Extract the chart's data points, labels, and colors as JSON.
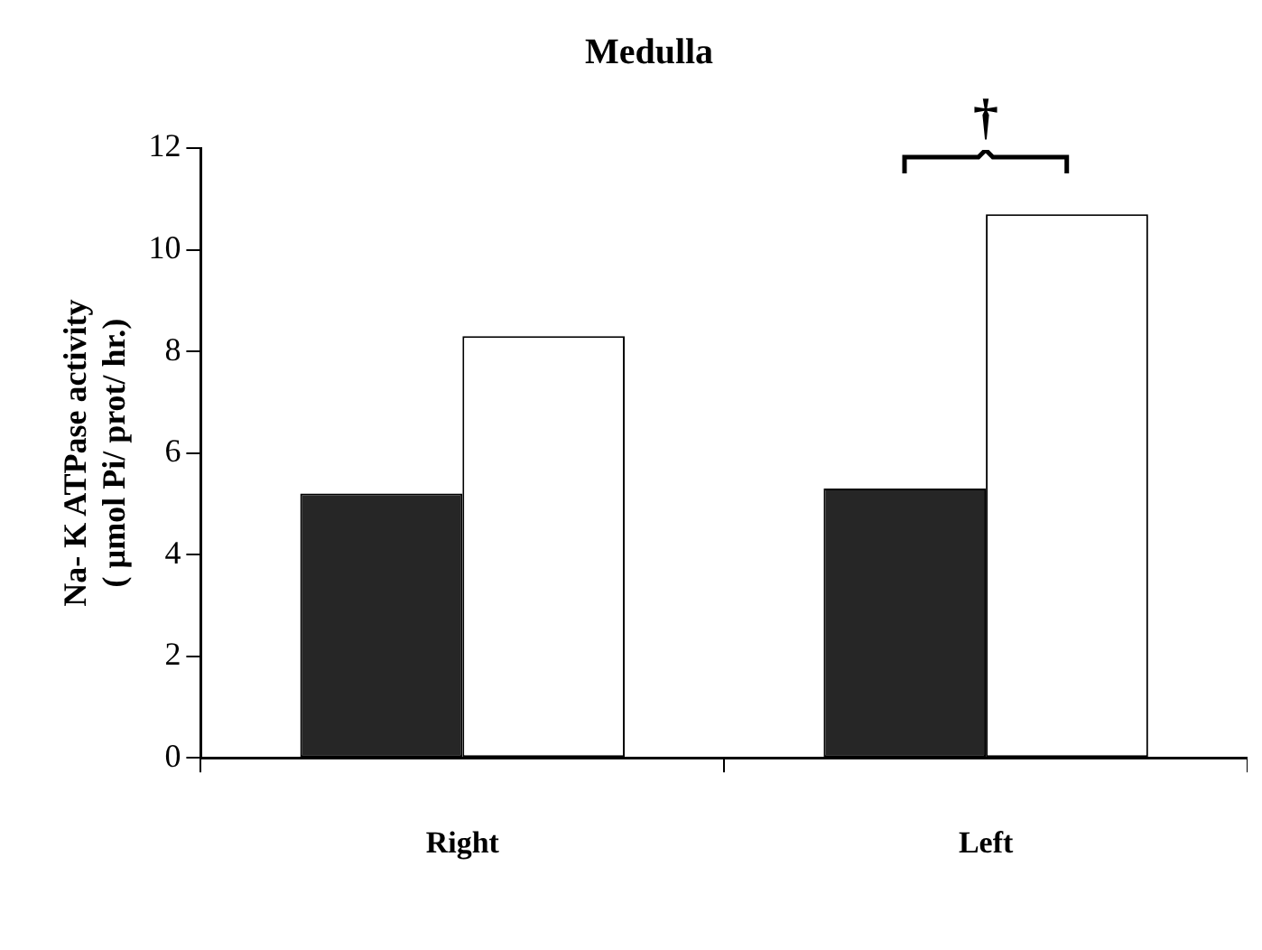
{
  "chart_data": {
    "type": "bar",
    "title": "Medulla",
    "ylabel": "Na- K ATPase activity\n( µmol Pi/ prot/ hr.)",
    "categories": [
      "Right",
      "Left"
    ],
    "series": [
      {
        "color": "#262626",
        "values": [
          5.2,
          5.3
        ]
      },
      {
        "color": "#ffffff",
        "values": [
          8.3,
          10.7
        ]
      }
    ],
    "ylim": [
      0,
      12
    ],
    "yticks": [
      0,
      2,
      4,
      6,
      8,
      10,
      12
    ],
    "grid": false,
    "legend": false,
    "annotations": [
      "†"
    ]
  }
}
